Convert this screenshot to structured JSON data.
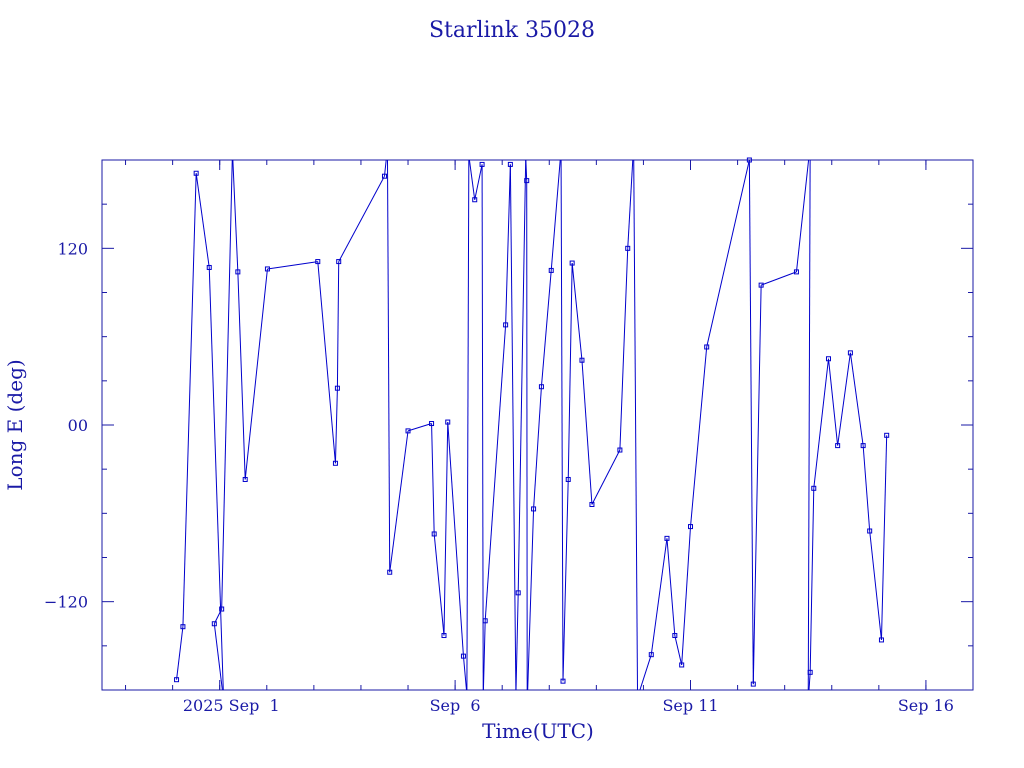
{
  "chart_data": {
    "type": "line",
    "title": "Starlink 35028",
    "xlabel": "Time(UTC)",
    "ylabel": "Long E (deg)",
    "x_axis": {
      "kind": "date",
      "range": [
        "2025-08-29T12:00:00Z",
        "2025-09-17T00:00:00Z"
      ],
      "tick_labels": [
        "2025 Sep  1",
        "Sep  6",
        "Sep 11",
        "Sep 16"
      ],
      "tick_dates": [
        "2025-09-01T00:00:00Z",
        "2025-09-06T00:00:00Z",
        "2025-09-11T00:00:00Z",
        "2025-09-16T00:00:00Z"
      ],
      "minor_tick_days": 1
    },
    "y_axis": {
      "range": [
        -180,
        180
      ],
      "ticks": [
        120,
        0,
        -120
      ],
      "tick_labels": [
        "120",
        "00",
        "−120"
      ],
      "minor_ticks": [
        -150,
        -90,
        -60,
        -30,
        30,
        60,
        90,
        150
      ]
    },
    "grid": false,
    "legend": "none",
    "colors": {
      "line": "#0000cc",
      "axis": "#1a1aa6",
      "text": "#1a1aa6"
    },
    "series": [
      {
        "wrap_longitude": true,
        "points": [
          {
            "x": "2025-08-31T02:00:00Z",
            "y": -173
          },
          {
            "x": "2025-08-31T05:15:00Z",
            "y": -137
          },
          {
            "x": "2025-08-31T12:00:00Z",
            "y": 171
          },
          {
            "x": "2025-08-31T18:40:00Z",
            "y": 107
          },
          {
            "x": "2025-09-01T02:00:00Z",
            "y": -187
          },
          {
            "x": "2025-08-31T21:15:00Z",
            "y": -135
          },
          {
            "x": "2025-09-01T01:00:00Z",
            "y": -125
          },
          {
            "x": "2025-09-01T06:30:00Z",
            "y": 186
          },
          {
            "x": "2025-09-01T09:15:00Z",
            "y": 104
          },
          {
            "x": "2025-09-01T13:00:00Z",
            "y": -37
          },
          {
            "x": "2025-09-02T00:20:00Z",
            "y": 106
          },
          {
            "x": "2025-09-03T02:00:00Z",
            "y": 111
          },
          {
            "x": "2025-09-03T11:00:00Z",
            "y": -26
          },
          {
            "x": "2025-09-03T12:00:00Z",
            "y": 25
          },
          {
            "x": "2025-09-03T12:40:00Z",
            "y": 111
          },
          {
            "x": "2025-09-04T12:00:00Z",
            "y": 169
          },
          {
            "x": "2025-09-04T13:30:00Z",
            "y": 188
          },
          {
            "x": "2025-09-04T14:40:00Z",
            "y": -100
          },
          {
            "x": "2025-09-05T00:00:00Z",
            "y": -4
          },
          {
            "x": "2025-09-05T12:00:00Z",
            "y": 1
          },
          {
            "x": "2025-09-05T13:20:00Z",
            "y": -74
          },
          {
            "x": "2025-09-05T18:20:00Z",
            "y": -143
          },
          {
            "x": "2025-09-05T20:15:00Z",
            "y": 2
          },
          {
            "x": "2025-09-06T04:15:00Z",
            "y": -157
          },
          {
            "x": "2025-09-06T06:00:00Z",
            "y": -183
          },
          {
            "x": "2025-09-06T07:00:00Z",
            "y": 183
          },
          {
            "x": "2025-09-06T10:00:00Z",
            "y": 153
          },
          {
            "x": "2025-09-06T13:45:00Z",
            "y": 177
          },
          {
            "x": "2025-09-06T14:20:00Z",
            "y": -185
          },
          {
            "x": "2025-09-06T15:20:00Z",
            "y": -133
          },
          {
            "x": "2025-09-07T01:45:00Z",
            "y": 68
          },
          {
            "x": "2025-09-07T04:10:00Z",
            "y": 177
          },
          {
            "x": "2025-09-07T07:00:00Z",
            "y": -183
          },
          {
            "x": "2025-09-07T08:10:00Z",
            "y": -114
          },
          {
            "x": "2025-09-07T12:00:00Z",
            "y": 182
          },
          {
            "x": "2025-09-07T12:30:00Z",
            "y": 166
          },
          {
            "x": "2025-09-07T12:45:00Z",
            "y": -190
          },
          {
            "x": "2025-09-07T16:00:00Z",
            "y": -57
          },
          {
            "x": "2025-09-07T20:00:00Z",
            "y": 26
          },
          {
            "x": "2025-09-08T01:00:00Z",
            "y": 105
          },
          {
            "x": "2025-09-08T06:00:00Z",
            "y": 187
          },
          {
            "x": "2025-09-08T07:00:00Z",
            "y": -174
          },
          {
            "x": "2025-09-08T09:40:00Z",
            "y": -37
          },
          {
            "x": "2025-09-08T11:40:00Z",
            "y": 110
          },
          {
            "x": "2025-09-08T16:40:00Z",
            "y": 44
          },
          {
            "x": "2025-09-08T21:45:00Z",
            "y": -54
          },
          {
            "x": "2025-09-09T12:00:00Z",
            "y": -17
          },
          {
            "x": "2025-09-09T16:00:00Z",
            "y": 120
          },
          {
            "x": "2025-09-09T19:00:00Z",
            "y": 190
          },
          {
            "x": "2025-09-09T21:00:00Z",
            "y": -185
          },
          {
            "x": "2025-09-10T04:00:00Z",
            "y": -156
          },
          {
            "x": "2025-09-10T12:00:00Z",
            "y": -77
          },
          {
            "x": "2025-09-10T16:00:00Z",
            "y": -143
          },
          {
            "x": "2025-09-10T19:30:00Z",
            "y": -163
          },
          {
            "x": "2025-09-11T00:00:00Z",
            "y": -69
          },
          {
            "x": "2025-09-11T08:15:00Z",
            "y": 53
          },
          {
            "x": "2025-09-12T06:00:00Z",
            "y": 180
          },
          {
            "x": "2025-09-12T08:00:00Z",
            "y": -176
          },
          {
            "x": "2025-09-12T12:00:00Z",
            "y": 95
          },
          {
            "x": "2025-09-13T06:00:00Z",
            "y": 104
          },
          {
            "x": "2025-09-13T13:00:00Z",
            "y": 190
          },
          {
            "x": "2025-09-13T12:00:00Z",
            "y": -188
          },
          {
            "x": "2025-09-13T13:00:00Z",
            "y": -168
          },
          {
            "x": "2025-09-13T14:50:00Z",
            "y": -43
          },
          {
            "x": "2025-09-13T22:20:00Z",
            "y": 45
          },
          {
            "x": "2025-09-14T03:00:00Z",
            "y": -14
          },
          {
            "x": "2025-09-14T09:30:00Z",
            "y": 49
          },
          {
            "x": "2025-09-14T16:00:00Z",
            "y": -14
          },
          {
            "x": "2025-09-14T19:20:00Z",
            "y": -72
          },
          {
            "x": "2025-09-15T01:20:00Z",
            "y": -146
          },
          {
            "x": "2025-09-15T04:00:00Z",
            "y": -7
          }
        ]
      }
    ]
  }
}
